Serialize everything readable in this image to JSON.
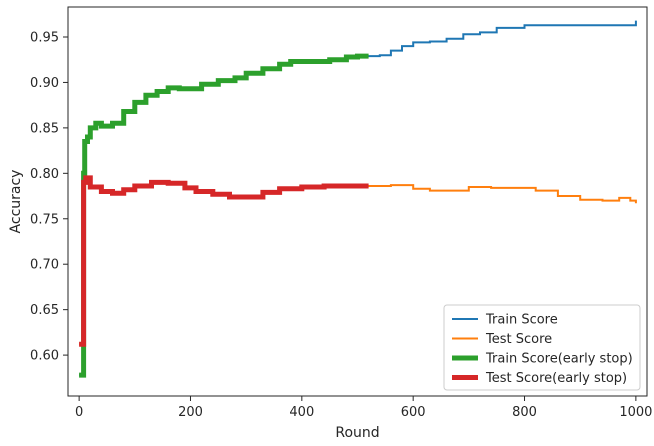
{
  "chart_data": {
    "type": "line",
    "title": "",
    "xlabel": "Round",
    "ylabel": "Accuracy",
    "xlim": [
      -20,
      1020
    ],
    "ylim": [
      0.555,
      0.983
    ],
    "xticks": [
      0,
      200,
      400,
      600,
      800,
      1000
    ],
    "yticks": [
      0.6,
      0.65,
      0.7,
      0.75,
      0.8,
      0.85,
      0.9,
      0.95
    ],
    "grid": false,
    "legend_position": "lower-right",
    "series": [
      {
        "name": "Train Score",
        "color": "#1f77b4",
        "style": "thin",
        "points": [
          [
            0,
            0.578
          ],
          [
            6,
            0.578
          ],
          [
            8,
            0.8
          ],
          [
            10,
            0.835
          ],
          [
            15,
            0.84
          ],
          [
            20,
            0.85
          ],
          [
            30,
            0.855
          ],
          [
            40,
            0.852
          ],
          [
            60,
            0.855
          ],
          [
            80,
            0.868
          ],
          [
            100,
            0.878
          ],
          [
            120,
            0.886
          ],
          [
            140,
            0.89
          ],
          [
            160,
            0.894
          ],
          [
            180,
            0.893
          ],
          [
            200,
            0.893
          ],
          [
            220,
            0.898
          ],
          [
            250,
            0.902
          ],
          [
            280,
            0.905
          ],
          [
            300,
            0.91
          ],
          [
            330,
            0.915
          ],
          [
            360,
            0.92
          ],
          [
            380,
            0.923
          ],
          [
            420,
            0.923
          ],
          [
            450,
            0.925
          ],
          [
            480,
            0.928
          ],
          [
            500,
            0.929
          ],
          [
            520,
            0.929
          ],
          [
            540,
            0.93
          ],
          [
            560,
            0.935
          ],
          [
            580,
            0.94
          ],
          [
            600,
            0.944
          ],
          [
            630,
            0.945
          ],
          [
            660,
            0.948
          ],
          [
            690,
            0.953
          ],
          [
            720,
            0.955
          ],
          [
            750,
            0.96
          ],
          [
            800,
            0.963
          ],
          [
            850,
            0.963
          ],
          [
            900,
            0.963
          ],
          [
            950,
            0.963
          ],
          [
            1000,
            0.968
          ]
        ]
      },
      {
        "name": "Test Score",
        "color": "#ff7f0e",
        "style": "thin",
        "points": [
          [
            0,
            0.612
          ],
          [
            6,
            0.612
          ],
          [
            8,
            0.79
          ],
          [
            12,
            0.795
          ],
          [
            20,
            0.785
          ],
          [
            40,
            0.78
          ],
          [
            60,
            0.778
          ],
          [
            80,
            0.782
          ],
          [
            100,
            0.786
          ],
          [
            130,
            0.79
          ],
          [
            160,
            0.789
          ],
          [
            190,
            0.784
          ],
          [
            210,
            0.78
          ],
          [
            240,
            0.777
          ],
          [
            270,
            0.774
          ],
          [
            300,
            0.774
          ],
          [
            330,
            0.779
          ],
          [
            360,
            0.783
          ],
          [
            400,
            0.785
          ],
          [
            440,
            0.786
          ],
          [
            480,
            0.786
          ],
          [
            520,
            0.786
          ],
          [
            560,
            0.787
          ],
          [
            580,
            0.787
          ],
          [
            600,
            0.783
          ],
          [
            630,
            0.781
          ],
          [
            660,
            0.781
          ],
          [
            700,
            0.785
          ],
          [
            740,
            0.784
          ],
          [
            780,
            0.784
          ],
          [
            820,
            0.781
          ],
          [
            860,
            0.775
          ],
          [
            900,
            0.771
          ],
          [
            940,
            0.77
          ],
          [
            970,
            0.773
          ],
          [
            990,
            0.77
          ],
          [
            1000,
            0.767
          ]
        ]
      },
      {
        "name": "Train Score(early stop)",
        "color": "#2ca02c",
        "style": "thick",
        "points": [
          [
            0,
            0.578
          ],
          [
            6,
            0.578
          ],
          [
            8,
            0.8
          ],
          [
            10,
            0.835
          ],
          [
            15,
            0.84
          ],
          [
            20,
            0.85
          ],
          [
            30,
            0.855
          ],
          [
            40,
            0.852
          ],
          [
            60,
            0.855
          ],
          [
            80,
            0.868
          ],
          [
            100,
            0.878
          ],
          [
            120,
            0.886
          ],
          [
            140,
            0.89
          ],
          [
            160,
            0.894
          ],
          [
            180,
            0.893
          ],
          [
            200,
            0.893
          ],
          [
            220,
            0.898
          ],
          [
            250,
            0.902
          ],
          [
            280,
            0.905
          ],
          [
            300,
            0.91
          ],
          [
            330,
            0.915
          ],
          [
            360,
            0.92
          ],
          [
            380,
            0.923
          ],
          [
            420,
            0.923
          ],
          [
            450,
            0.925
          ],
          [
            480,
            0.928
          ],
          [
            500,
            0.929
          ],
          [
            520,
            0.929
          ]
        ]
      },
      {
        "name": "Test Score(early stop)",
        "color": "#d62728",
        "style": "thick",
        "points": [
          [
            0,
            0.612
          ],
          [
            6,
            0.612
          ],
          [
            8,
            0.79
          ],
          [
            12,
            0.795
          ],
          [
            20,
            0.785
          ],
          [
            40,
            0.78
          ],
          [
            60,
            0.778
          ],
          [
            80,
            0.782
          ],
          [
            100,
            0.786
          ],
          [
            130,
            0.79
          ],
          [
            160,
            0.789
          ],
          [
            190,
            0.784
          ],
          [
            210,
            0.78
          ],
          [
            240,
            0.777
          ],
          [
            270,
            0.774
          ],
          [
            300,
            0.774
          ],
          [
            330,
            0.779
          ],
          [
            360,
            0.783
          ],
          [
            400,
            0.785
          ],
          [
            440,
            0.786
          ],
          [
            480,
            0.786
          ],
          [
            520,
            0.786
          ]
        ]
      }
    ]
  }
}
